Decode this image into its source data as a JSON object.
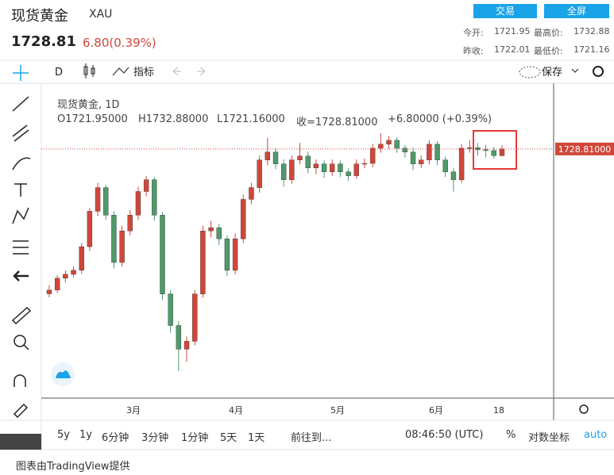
{
  "header": {
    "title": "现货黄金",
    "symbol": "XAU",
    "price": "1728.81",
    "change": "6.80(0.39%)",
    "buttons": [
      "交易",
      "全屏"
    ],
    "stats": [
      [
        "今开:",
        "1721.95",
        "最高价:",
        "1732.88"
      ],
      [
        "昨收:",
        "1722.01",
        "最低价:",
        "1721.16"
      ]
    ]
  },
  "toolbar": {
    "interval": "D",
    "indicators": "指标",
    "save": "保存"
  },
  "legend": {
    "name": "现货黄金, 1D",
    "open": "O1721.95000",
    "high": "H1732.88000",
    "low": "L1721.16000",
    "close": "收=1728.81000",
    "change": "+6.80000 (+0.39%)"
  },
  "chart_data": {
    "type": "candlestick",
    "up_color": "#d0473a",
    "down_color": "#4e9a6b",
    "x_labels": [
      "3月",
      "4月",
      "5月",
      "6月",
      "18"
    ],
    "last_price": {
      "value": 1728.81,
      "label": "1728.81000"
    },
    "candles": [
      [
        1580.0,
        1588.5,
        1576.2,
        1583.8
      ],
      [
        1583.8,
        1599.0,
        1581.0,
        1596.0
      ],
      [
        1596.0,
        1604.0,
        1591.5,
        1600.0
      ],
      [
        1600.0,
        1608.0,
        1597.0,
        1604.1
      ],
      [
        1604.1,
        1632.0,
        1600.5,
        1628.4
      ],
      [
        1628.4,
        1668.0,
        1624.0,
        1664.8
      ],
      [
        1664.8,
        1694.0,
        1660.0,
        1689.1
      ],
      [
        1689.1,
        1692.0,
        1656.0,
        1660.8
      ],
      [
        1660.8,
        1665.0,
        1606.0,
        1612.2
      ],
      [
        1612.2,
        1650.0,
        1608.0,
        1644.6
      ],
      [
        1644.6,
        1666.0,
        1640.0,
        1660.8
      ],
      [
        1660.8,
        1690.0,
        1656.0,
        1685.1
      ],
      [
        1685.1,
        1701.0,
        1680.0,
        1697.2
      ],
      [
        1697.2,
        1700.0,
        1655.0,
        1660.8
      ],
      [
        1660.8,
        1664.0,
        1574.0,
        1579.8
      ],
      [
        1579.8,
        1584.0,
        1540.0,
        1547.4
      ],
      [
        1547.4,
        1552.0,
        1500.5,
        1523.1
      ],
      [
        1523.1,
        1536.0,
        1510.0,
        1531.2
      ],
      [
        1531.2,
        1584.0,
        1527.0,
        1579.8
      ],
      [
        1579.8,
        1650.0,
        1576.0,
        1644.6
      ],
      [
        1644.6,
        1655.0,
        1638.0,
        1648.0
      ],
      [
        1648.0,
        1652.0,
        1630.0,
        1636.5
      ],
      [
        1636.5,
        1640.0,
        1598.0,
        1604.1
      ],
      [
        1604.1,
        1642.0,
        1600.0,
        1636.5
      ],
      [
        1636.5,
        1682.0,
        1632.0,
        1677.0
      ],
      [
        1677.0,
        1694.0,
        1672.0,
        1689.1
      ],
      [
        1689.1,
        1722.0,
        1684.0,
        1717.5
      ],
      [
        1717.5,
        1740.0,
        1712.0,
        1725.6
      ],
      [
        1725.6,
        1730.0,
        1708.0,
        1713.4
      ],
      [
        1713.4,
        1718.0,
        1690.0,
        1697.2
      ],
      [
        1697.2,
        1722.0,
        1693.0,
        1717.5
      ],
      [
        1717.5,
        1735.0,
        1713.0,
        1721.5
      ],
      [
        1721.5,
        1726.0,
        1704.0,
        1709.4
      ],
      [
        1709.4,
        1718.0,
        1703.0,
        1713.4
      ],
      [
        1713.4,
        1717.0,
        1699.0,
        1705.3
      ],
      [
        1705.3,
        1718.0,
        1701.0,
        1713.4
      ],
      [
        1713.4,
        1717.0,
        1700.0,
        1705.3
      ],
      [
        1705.3,
        1709.0,
        1696.0,
        1701.3
      ],
      [
        1701.3,
        1718.0,
        1698.0,
        1713.4
      ],
      [
        1713.4,
        1719.0,
        1709.0,
        1714.0
      ],
      [
        1714.0,
        1734.0,
        1710.0,
        1729.6
      ],
      [
        1729.6,
        1745.0,
        1725.0,
        1733.7
      ],
      [
        1733.7,
        1742.0,
        1729.0,
        1737.7
      ],
      [
        1737.7,
        1741.0,
        1725.0,
        1729.6
      ],
      [
        1729.6,
        1733.0,
        1720.0,
        1725.6
      ],
      [
        1725.6,
        1730.0,
        1707.0,
        1713.4
      ],
      [
        1713.4,
        1722.0,
        1709.0,
        1717.5
      ],
      [
        1717.5,
        1738.0,
        1713.0,
        1733.7
      ],
      [
        1733.7,
        1737.0,
        1712.0,
        1717.5
      ],
      [
        1717.5,
        1721.0,
        1700.0,
        1705.3
      ],
      [
        1705.3,
        1709.0,
        1685.0,
        1697.2
      ],
      [
        1697.2,
        1734.0,
        1694.0,
        1729.6
      ],
      [
        1729.6,
        1738.0,
        1725.0,
        1730.2
      ],
      [
        1730.2,
        1735.0,
        1722.0,
        1728.0
      ],
      [
        1728.0,
        1733.0,
        1720.0,
        1727.2
      ],
      [
        1727.2,
        1731.0,
        1719.0,
        1722.01
      ],
      [
        1721.95,
        1732.88,
        1721.16,
        1728.81
      ]
    ]
  },
  "bottom_bar": {
    "ranges": [
      "5y",
      "1y",
      "6分钟",
      "3分钟",
      "1分钟",
      "5天",
      "1天"
    ],
    "goto": "前往到...",
    "time": "08:46:50 (UTC)",
    "percent": "%",
    "log": "对数坐标",
    "auto": "auto"
  },
  "footer": "图表由TradingView提供"
}
